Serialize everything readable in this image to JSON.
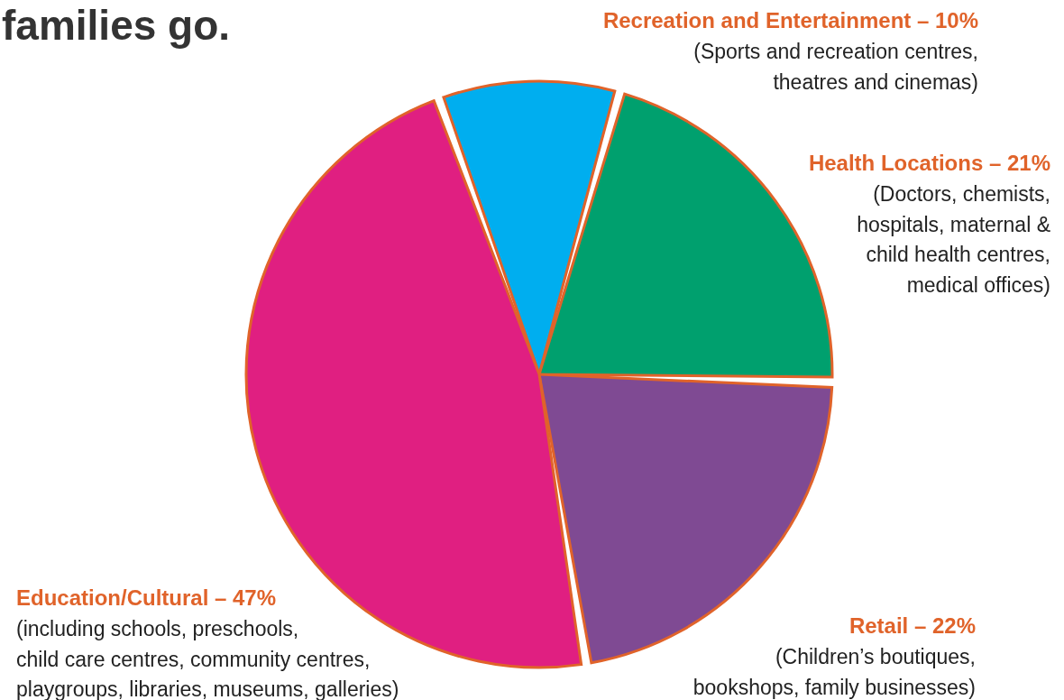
{
  "chart_data": {
    "type": "pie",
    "title": "families go.",
    "categories": [
      "Recreation and Entertainment – 10%",
      "Health Locations – 21%",
      "Retail – 22%",
      "Education/Cultural – 47%"
    ],
    "values": [
      10,
      21,
      22,
      47
    ],
    "colors": [
      "#00aeef",
      "#00a06e",
      "#7f4a93",
      "#e01f81"
    ],
    "annotations": [
      "(Sports and recreation centres,\ntheatres and cinemas)",
      "(Doctors, chemists,\nhospitals, maternal &\nchild health centres,\nmedical offices)",
      "(Children’s boutiques,\nbookshops, family businesses)",
      "(including schools, preschools,\nchild care centres, community centres,\nplaygroups, libraries, museums, galleries)"
    ]
  }
}
